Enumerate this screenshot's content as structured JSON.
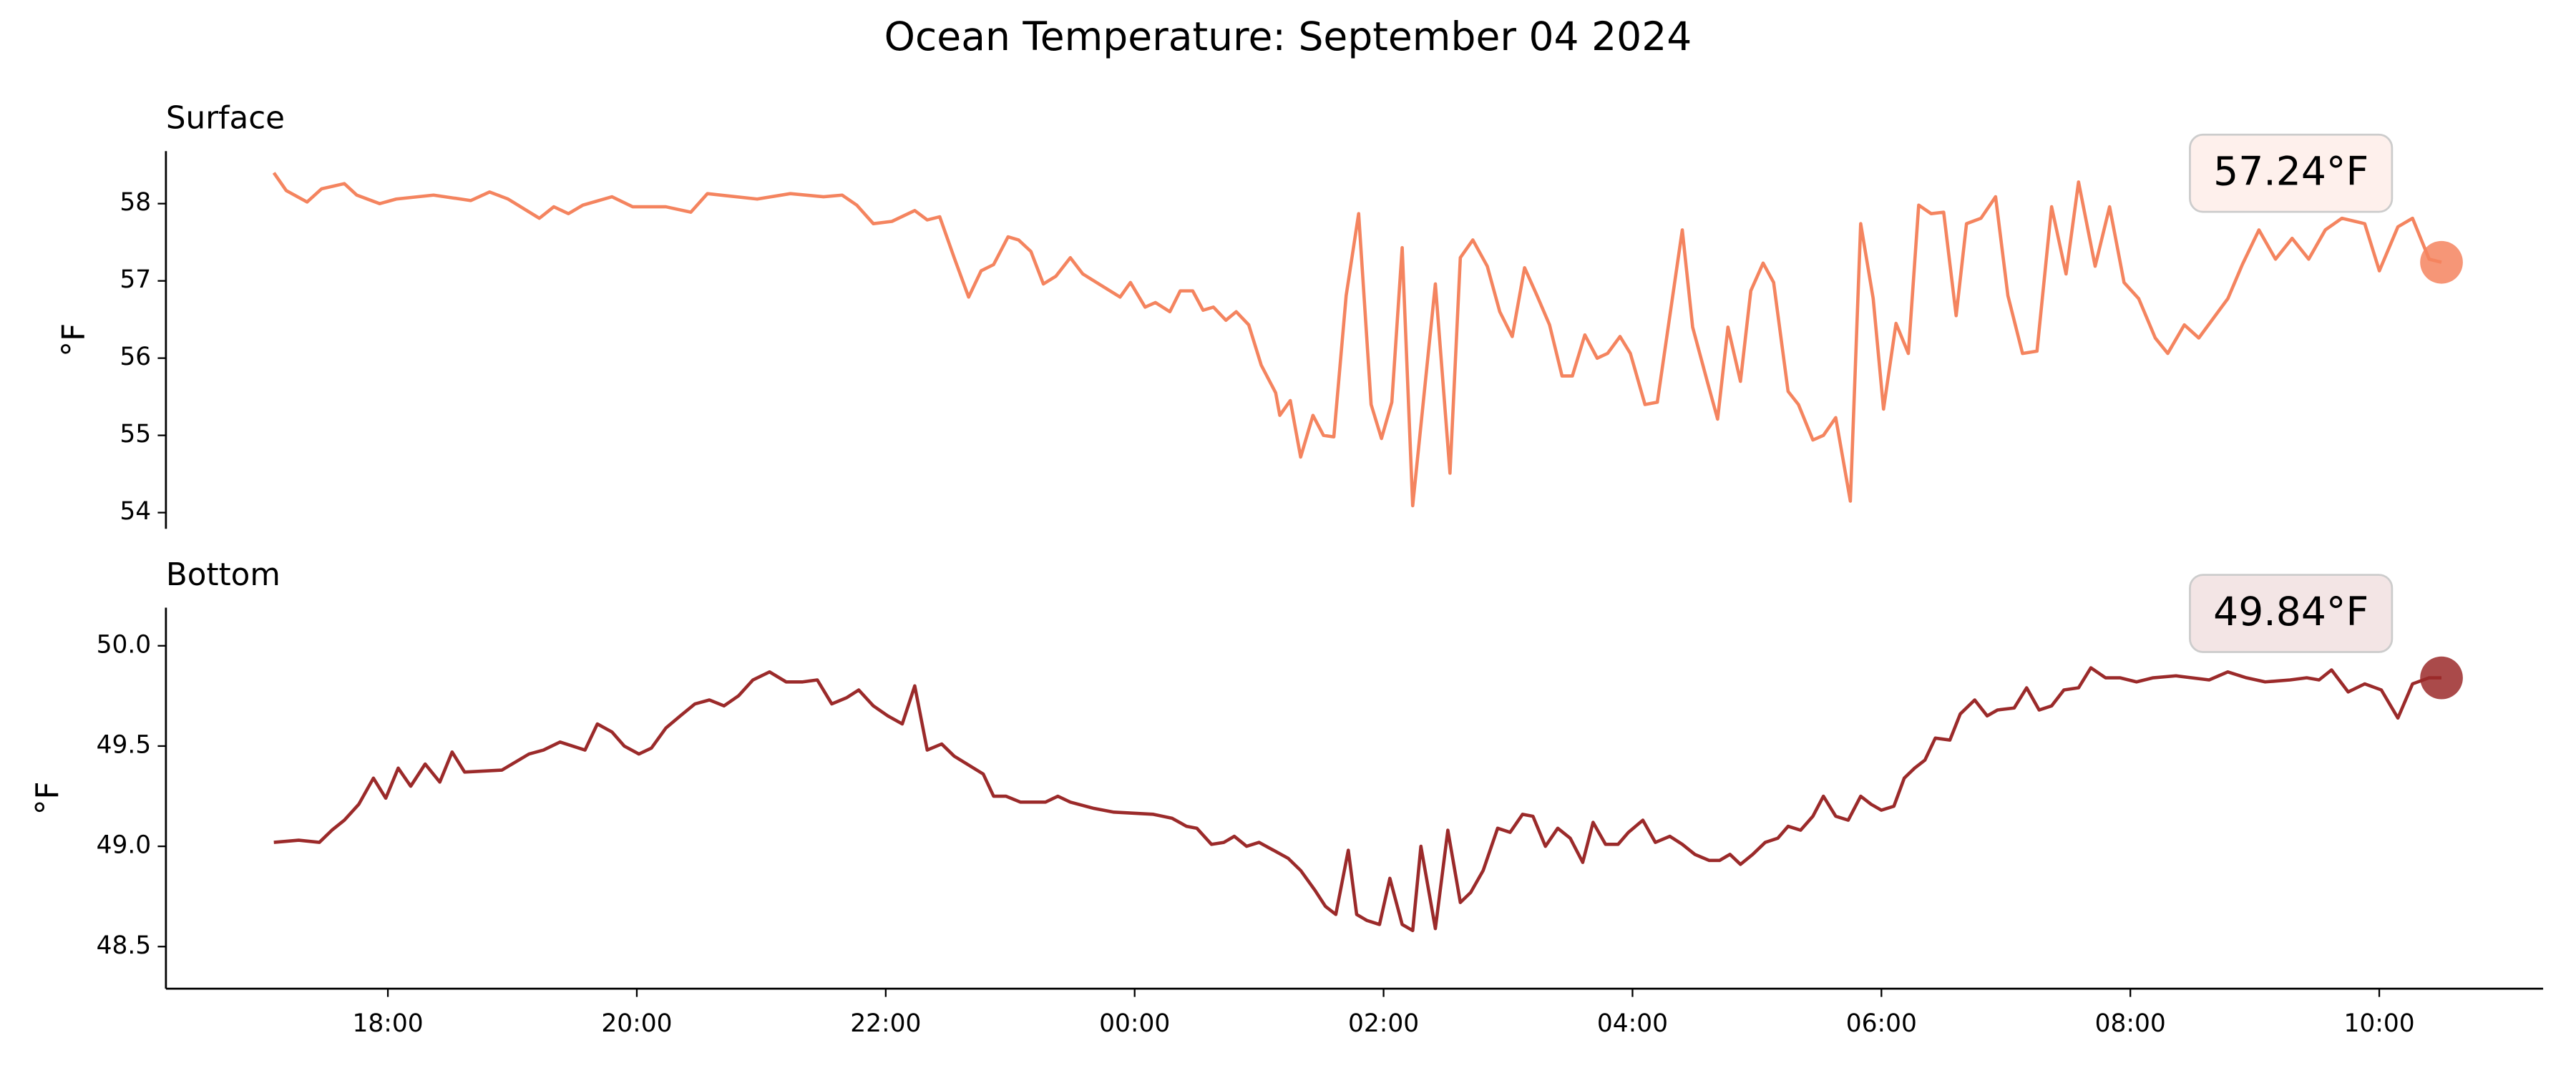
{
  "title": "Ocean Temperature: September 04 2024",
  "chart_data": [
    {
      "type": "line",
      "title": "Surface",
      "ylabel": "°F",
      "color": "#f4845f",
      "annotation": "57.24°F",
      "xlim": [
        "16:13",
        "11:19"
      ],
      "ylim": [
        53.79,
        58.68
      ],
      "yticks": [
        54,
        55,
        56,
        57,
        58
      ],
      "x": [
        "17:05",
        "17:11",
        "17:21",
        "17:28",
        "17:39",
        "17:45",
        "17:56",
        "18:04",
        "18:22",
        "18:40",
        "18:49",
        "18:58",
        "19:13",
        "19:20",
        "19:27",
        "19:34",
        "19:48",
        "19:58",
        "20:14",
        "20:26",
        "20:34",
        "20:58",
        "21:14",
        "21:30",
        "21:39",
        "21:46",
        "21:54",
        "22:03",
        "22:14",
        "22:20",
        "22:26",
        "22:33",
        "22:40",
        "22:46",
        "22:52",
        "22:59",
        "23:04",
        "23:10",
        "23:16",
        "23:22",
        "23:29",
        "23:35",
        "23:53",
        "23:58",
        "00:05",
        "00:10",
        "00:17",
        "00:22",
        "00:28",
        "00:33",
        "00:38",
        "00:44",
        "00:49",
        "00:55",
        "01:01",
        "01:08",
        "01:10",
        "01:15",
        "01:20",
        "01:26",
        "01:31",
        "01:36",
        "01:42",
        "01:48",
        "01:54",
        "01:59",
        "02:04",
        "02:09",
        "02:14",
        "02:25",
        "02:32",
        "02:37",
        "02:43",
        "02:50",
        "02:56",
        "03:02",
        "03:08",
        "03:14",
        "03:20",
        "03:26",
        "03:31",
        "03:37",
        "03:43",
        "03:48",
        "03:54",
        "03:59",
        "04:06",
        "04:12",
        "04:24",
        "04:29",
        "04:36",
        "04:41",
        "04:46",
        "04:52",
        "04:57",
        "05:03",
        "05:08",
        "05:15",
        "05:20",
        "05:27",
        "05:32",
        "05:38",
        "05:45",
        "05:50",
        "05:56",
        "06:01",
        "06:07",
        "06:13",
        "06:18",
        "06:24",
        "06:30",
        "06:36",
        "06:41",
        "06:48",
        "06:55",
        "07:01",
        "07:08",
        "07:15",
        "07:22",
        "07:29",
        "07:35",
        "07:43",
        "07:50",
        "07:57",
        "08:04",
        "08:12",
        "08:18",
        "08:26",
        "08:33",
        "08:47",
        "08:54",
        "09:02",
        "09:10",
        "09:18",
        "09:26",
        "09:34",
        "09:42",
        "09:53",
        "10:00",
        "10:09",
        "10:16",
        "10:24",
        "10:30"
      ],
      "values": [
        58.4,
        58.17,
        58.02,
        58.19,
        58.26,
        58.11,
        58.0,
        58.06,
        58.11,
        58.04,
        58.15,
        58.06,
        57.81,
        57.96,
        57.87,
        57.98,
        58.09,
        57.96,
        57.96,
        57.89,
        58.13,
        58.06,
        58.13,
        58.09,
        58.11,
        57.98,
        57.74,
        57.77,
        57.91,
        57.79,
        57.83,
        57.3,
        56.79,
        57.13,
        57.21,
        57.57,
        57.53,
        57.38,
        56.96,
        57.06,
        57.3,
        57.09,
        56.79,
        56.98,
        56.66,
        56.72,
        56.6,
        56.87,
        56.87,
        56.62,
        56.66,
        56.49,
        56.6,
        56.43,
        55.91,
        55.55,
        55.26,
        55.45,
        54.72,
        55.26,
        55.0,
        54.98,
        56.81,
        57.87,
        55.4,
        54.96,
        55.43,
        57.43,
        54.09,
        56.96,
        54.51,
        57.3,
        57.53,
        57.19,
        56.6,
        56.28,
        57.17,
        56.81,
        56.43,
        55.77,
        55.77,
        56.3,
        56.0,
        56.06,
        56.28,
        56.06,
        55.4,
        55.43,
        57.66,
        56.4,
        55.7,
        55.21,
        56.4,
        55.7,
        56.87,
        57.23,
        56.98,
        55.57,
        55.4,
        54.94,
        55.0,
        55.23,
        54.15,
        57.74,
        56.77,
        55.34,
        56.45,
        56.06,
        57.98,
        57.87,
        57.89,
        56.55,
        57.74,
        57.81,
        58.09,
        56.81,
        56.06,
        56.09,
        57.96,
        57.09,
        58.28,
        57.19,
        57.96,
        56.98,
        56.77,
        56.26,
        56.06,
        56.43,
        56.26,
        56.77,
        57.21,
        57.66,
        57.28,
        57.55,
        57.28,
        57.66,
        57.81,
        57.74,
        57.13,
        57.7,
        57.81,
        57.28,
        57.24
      ]
    },
    {
      "type": "line",
      "title": "Bottom",
      "ylabel": "°F",
      "color": "#9b2a2a",
      "annotation": "49.84°F",
      "xlim": [
        "16:13",
        "11:19"
      ],
      "xticks": [
        "18:00",
        "20:00",
        "22:00",
        "00:00",
        "02:00",
        "04:00",
        "06:00",
        "08:00",
        "10:00"
      ],
      "ylim": [
        48.29,
        50.19
      ],
      "yticks": [
        48.5,
        {
          "value": 49,
          "label": "49.0"
        },
        49.5,
        {
          "value": 50,
          "label": "50.0"
        }
      ],
      "x": [
        "17:05",
        "17:17",
        "17:27",
        "17:33",
        "17:39",
        "17:46",
        "17:53",
        "17:59",
        "18:05",
        "18:11",
        "18:18",
        "18:25",
        "18:31",
        "18:37",
        "18:55",
        "19:08",
        "19:15",
        "19:23",
        "19:35",
        "19:41",
        "19:48",
        "19:54",
        "20:01",
        "20:07",
        "20:14",
        "20:21",
        "20:28",
        "20:35",
        "20:42",
        "20:49",
        "20:56",
        "21:04",
        "21:12",
        "21:20",
        "21:27",
        "21:34",
        "21:41",
        "21:47",
        "21:54",
        "22:01",
        "22:08",
        "22:14",
        "22:20",
        "22:27",
        "22:33",
        "22:47",
        "22:52",
        "22:58",
        "23:05",
        "23:17",
        "23:23",
        "23:29",
        "23:40",
        "23:50",
        "00:09",
        "00:18",
        "00:25",
        "00:30",
        "00:37",
        "00:43",
        "00:48",
        "00:54",
        "01:00",
        "01:14",
        "01:20",
        "01:27",
        "01:32",
        "01:37",
        "01:43",
        "01:47",
        "01:52",
        "01:58",
        "02:03",
        "02:09",
        "02:14",
        "02:18",
        "02:25",
        "02:31",
        "02:37",
        "02:42",
        "02:48",
        "02:55",
        "03:01",
        "03:07",
        "03:12",
        "03:18",
        "03:24",
        "03:30",
        "03:36",
        "03:41",
        "03:47",
        "03:53",
        "03:58",
        "04:05",
        "04:11",
        "04:18",
        "04:24",
        "04:30",
        "04:37",
        "04:42",
        "04:47",
        "04:52",
        "04:58",
        "05:04",
        "05:10",
        "05:15",
        "05:21",
        "05:27",
        "05:32",
        "05:38",
        "05:44",
        "05:50",
        "05:55",
        "06:00",
        "06:06",
        "06:11",
        "06:16",
        "06:21",
        "06:26",
        "06:33",
        "06:38",
        "06:45",
        "06:51",
        "06:56",
        "07:04",
        "07:10",
        "07:16",
        "07:22",
        "07:28",
        "07:35",
        "07:41",
        "07:48",
        "07:55",
        "08:03",
        "08:11",
        "08:22",
        "08:38",
        "08:47",
        "08:56",
        "09:05",
        "09:17",
        "09:25",
        "09:31",
        "09:37",
        "09:45",
        "09:53",
        "10:01",
        "10:09",
        "10:16",
        "10:24",
        "10:30"
      ],
      "values": [
        49.02,
        49.03,
        49.02,
        49.08,
        49.13,
        49.21,
        49.34,
        49.24,
        49.39,
        49.3,
        49.41,
        49.32,
        49.47,
        49.37,
        49.38,
        49.46,
        49.48,
        49.52,
        49.48,
        49.61,
        49.57,
        49.5,
        49.46,
        49.49,
        49.59,
        49.65,
        49.71,
        49.73,
        49.7,
        49.75,
        49.83,
        49.87,
        49.82,
        49.82,
        49.83,
        49.71,
        49.74,
        49.78,
        49.7,
        49.65,
        49.61,
        49.8,
        49.48,
        49.51,
        49.45,
        49.36,
        49.25,
        49.25,
        49.22,
        49.22,
        49.25,
        49.22,
        49.19,
        49.17,
        49.16,
        49.14,
        49.1,
        49.09,
        49.01,
        49.02,
        49.05,
        49.0,
        49.02,
        48.94,
        48.88,
        48.78,
        48.7,
        48.66,
        48.98,
        48.66,
        48.63,
        48.61,
        48.84,
        48.61,
        48.58,
        49.0,
        48.59,
        49.08,
        48.72,
        48.77,
        48.88,
        49.09,
        49.07,
        49.16,
        49.15,
        49.0,
        49.09,
        49.04,
        48.92,
        49.12,
        49.01,
        49.01,
        49.07,
        49.13,
        49.02,
        49.05,
        49.01,
        48.96,
        48.93,
        48.93,
        48.96,
        48.91,
        48.96,
        49.02,
        49.04,
        49.1,
        49.08,
        49.15,
        49.25,
        49.15,
        49.13,
        49.25,
        49.21,
        49.18,
        49.2,
        49.34,
        49.39,
        49.43,
        49.54,
        49.53,
        49.66,
        49.73,
        49.65,
        49.68,
        49.69,
        49.79,
        49.68,
        49.7,
        49.78,
        49.79,
        49.89,
        49.84,
        49.84,
        49.82,
        49.84,
        49.85,
        49.83,
        49.87,
        49.84,
        49.82,
        49.83,
        49.84,
        49.83,
        49.88,
        49.77,
        49.81,
        49.78,
        49.64,
        49.81,
        49.84,
        49.84
      ]
    }
  ]
}
